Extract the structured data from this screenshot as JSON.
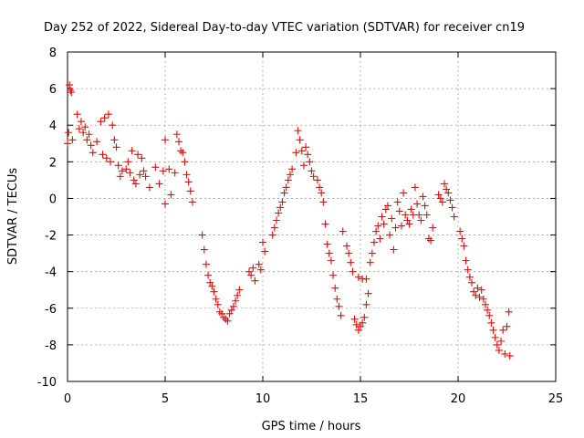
{
  "chart_data": {
    "type": "scatter",
    "title": "Day 252 of 2022, Sidereal Day-to-day VTEC variation (SDTVAR) for receiver cn19",
    "xlabel": "GPS time / hours",
    "ylabel": "SDTVAR / TECUs",
    "xlim": [
      0,
      25
    ],
    "ylim": [
      -10,
      8
    ],
    "xticks": [
      0,
      5,
      10,
      15,
      20,
      25
    ],
    "yticks": [
      -10,
      -8,
      -6,
      -4,
      -2,
      0,
      2,
      4,
      6,
      8
    ],
    "xtick_labels": [
      "0",
      "5",
      "10",
      "15",
      "20",
      "25"
    ],
    "ytick_labels": [
      "-10",
      "-8",
      "-6",
      "-4",
      "-2",
      "0",
      "2",
      "4",
      "6",
      "8"
    ],
    "grid": true,
    "marker": "plus",
    "color": "#ff0000",
    "series": [
      {
        "name": "SDTVAR",
        "points": [
          [
            0.0,
            3.0
          ],
          [
            0.05,
            3.6
          ],
          [
            0.1,
            6.2
          ],
          [
            0.15,
            5.9
          ],
          [
            0.2,
            5.8
          ],
          [
            0.25,
            3.2
          ],
          [
            0.5,
            4.6
          ],
          [
            0.6,
            3.8
          ],
          [
            0.7,
            4.2
          ],
          [
            0.8,
            3.6
          ],
          [
            0.9,
            3.9
          ],
          [
            1.0,
            3.2
          ],
          [
            1.1,
            3.5
          ],
          [
            1.2,
            2.9
          ],
          [
            1.3,
            2.5
          ],
          [
            1.5,
            3.1
          ],
          [
            1.7,
            4.2
          ],
          [
            1.8,
            2.4
          ],
          [
            1.9,
            4.4
          ],
          [
            2.0,
            2.2
          ],
          [
            2.1,
            4.6
          ],
          [
            2.2,
            2.0
          ],
          [
            2.3,
            4.0
          ],
          [
            2.4,
            3.2
          ],
          [
            2.5,
            2.8
          ],
          [
            2.6,
            1.8
          ],
          [
            2.7,
            1.2
          ],
          [
            2.8,
            1.5
          ],
          [
            3.0,
            1.6
          ],
          [
            3.1,
            2.0
          ],
          [
            3.2,
            1.4
          ],
          [
            3.3,
            2.6
          ],
          [
            3.4,
            1.0
          ],
          [
            3.5,
            0.8
          ],
          [
            3.6,
            2.4
          ],
          [
            3.7,
            1.3
          ],
          [
            3.8,
            2.2
          ],
          [
            3.9,
            1.5
          ],
          [
            4.0,
            1.2
          ],
          [
            4.2,
            0.6
          ],
          [
            4.5,
            1.7
          ],
          [
            4.7,
            0.8
          ],
          [
            4.9,
            1.5
          ],
          [
            5.0,
            -0.3
          ],
          [
            5.0,
            3.2
          ],
          [
            5.2,
            1.6
          ],
          [
            5.3,
            0.2
          ],
          [
            5.5,
            1.4
          ],
          [
            5.6,
            3.5
          ],
          [
            5.7,
            3.1
          ],
          [
            5.8,
            2.6
          ],
          [
            5.9,
            2.5
          ],
          [
            6.0,
            2.0
          ],
          [
            6.1,
            1.3
          ],
          [
            6.2,
            0.9
          ],
          [
            6.3,
            0.4
          ],
          [
            6.4,
            -0.2
          ],
          [
            6.9,
            -2.0
          ],
          [
            7.0,
            -2.8
          ],
          [
            7.1,
            -3.6
          ],
          [
            7.2,
            -4.2
          ],
          [
            7.3,
            -4.6
          ],
          [
            7.4,
            -4.8
          ],
          [
            7.5,
            -5.1
          ],
          [
            7.6,
            -5.5
          ],
          [
            7.7,
            -5.8
          ],
          [
            7.8,
            -6.2
          ],
          [
            7.9,
            -6.3
          ],
          [
            8.0,
            -6.5
          ],
          [
            8.1,
            -6.6
          ],
          [
            8.2,
            -6.7
          ],
          [
            8.3,
            -6.3
          ],
          [
            8.4,
            -6.1
          ],
          [
            8.5,
            -5.9
          ],
          [
            8.6,
            -5.6
          ],
          [
            8.7,
            -5.3
          ],
          [
            8.8,
            -5.0
          ],
          [
            9.3,
            -4.0
          ],
          [
            9.4,
            -4.2
          ],
          [
            9.5,
            -3.8
          ],
          [
            9.6,
            -4.5
          ],
          [
            9.8,
            -3.6
          ],
          [
            9.9,
            -3.9
          ],
          [
            10.0,
            -2.4
          ],
          [
            10.1,
            -2.9
          ],
          [
            10.5,
            -2.0
          ],
          [
            10.6,
            -1.6
          ],
          [
            10.7,
            -1.2
          ],
          [
            10.8,
            -0.8
          ],
          [
            10.9,
            -0.5
          ],
          [
            11.0,
            -0.2
          ],
          [
            11.1,
            0.3
          ],
          [
            11.2,
            0.6
          ],
          [
            11.3,
            1.0
          ],
          [
            11.4,
            1.3
          ],
          [
            11.5,
            1.6
          ],
          [
            11.7,
            2.5
          ],
          [
            11.8,
            3.7
          ],
          [
            11.9,
            3.2
          ],
          [
            12.0,
            2.6
          ],
          [
            12.1,
            1.8
          ],
          [
            12.2,
            2.8
          ],
          [
            12.3,
            2.4
          ],
          [
            12.4,
            2.0
          ],
          [
            12.5,
            1.5
          ],
          [
            12.6,
            1.2
          ],
          [
            12.8,
            1.0
          ],
          [
            12.9,
            0.6
          ],
          [
            13.0,
            0.3
          ],
          [
            13.1,
            -0.2
          ],
          [
            13.2,
            -1.4
          ],
          [
            13.3,
            -2.5
          ],
          [
            13.4,
            -3.0
          ],
          [
            13.5,
            -3.4
          ],
          [
            13.6,
            -4.2
          ],
          [
            13.7,
            -4.9
          ],
          [
            13.8,
            -5.5
          ],
          [
            13.9,
            -5.9
          ],
          [
            14.0,
            -6.4
          ],
          [
            14.1,
            -1.8
          ],
          [
            14.3,
            -2.6
          ],
          [
            14.4,
            -3.0
          ],
          [
            14.5,
            -3.5
          ],
          [
            14.6,
            -4.0
          ],
          [
            14.7,
            -6.6
          ],
          [
            14.8,
            -6.9
          ],
          [
            14.9,
            -7.2
          ],
          [
            15.0,
            -7.0
          ],
          [
            15.1,
            -6.8
          ],
          [
            15.2,
            -6.5
          ],
          [
            15.3,
            -5.8
          ],
          [
            15.4,
            -5.2
          ],
          [
            14.9,
            -4.3
          ],
          [
            15.1,
            -4.4
          ],
          [
            15.3,
            -4.4
          ],
          [
            15.5,
            -3.5
          ],
          [
            15.6,
            -3.0
          ],
          [
            15.7,
            -2.4
          ],
          [
            15.8,
            -1.8
          ],
          [
            15.9,
            -1.5
          ],
          [
            16.0,
            -2.2
          ],
          [
            16.1,
            -1.0
          ],
          [
            16.2,
            -1.4
          ],
          [
            16.3,
            -0.6
          ],
          [
            16.4,
            -0.4
          ],
          [
            16.5,
            -2.0
          ],
          [
            16.6,
            -1.1
          ],
          [
            16.7,
            -2.8
          ],
          [
            16.8,
            -1.6
          ],
          [
            16.9,
            -0.2
          ],
          [
            17.0,
            -0.7
          ],
          [
            17.1,
            -1.5
          ],
          [
            17.2,
            0.3
          ],
          [
            17.3,
            -0.9
          ],
          [
            17.4,
            -1.2
          ],
          [
            17.5,
            -1.4
          ],
          [
            17.6,
            -0.6
          ],
          [
            17.7,
            -0.9
          ],
          [
            17.8,
            0.6
          ],
          [
            17.9,
            -0.3
          ],
          [
            18.0,
            -0.9
          ],
          [
            18.1,
            -1.2
          ],
          [
            18.2,
            0.1
          ],
          [
            18.3,
            -0.4
          ],
          [
            18.4,
            -0.9
          ],
          [
            18.5,
            -2.2
          ],
          [
            18.6,
            -2.3
          ],
          [
            18.7,
            -1.6
          ],
          [
            19.0,
            0.2
          ],
          [
            19.1,
            0.0
          ],
          [
            19.2,
            -0.2
          ],
          [
            19.3,
            0.8
          ],
          [
            19.4,
            0.5
          ],
          [
            19.5,
            0.3
          ],
          [
            19.6,
            -0.1
          ],
          [
            19.7,
            -0.5
          ],
          [
            19.8,
            -1.0
          ],
          [
            20.1,
            -1.8
          ],
          [
            20.2,
            -2.2
          ],
          [
            20.3,
            -2.6
          ],
          [
            20.4,
            -3.4
          ],
          [
            20.5,
            -3.9
          ],
          [
            20.6,
            -4.3
          ],
          [
            20.7,
            -4.6
          ],
          [
            20.8,
            -5.1
          ],
          [
            20.9,
            -5.3
          ],
          [
            21.0,
            -4.9
          ],
          [
            21.1,
            -5.4
          ],
          [
            21.2,
            -5.0
          ],
          [
            21.3,
            -5.5
          ],
          [
            21.4,
            -5.8
          ],
          [
            21.5,
            -6.1
          ],
          [
            21.6,
            -6.4
          ],
          [
            21.7,
            -6.8
          ],
          [
            21.8,
            -7.2
          ],
          [
            21.9,
            -7.6
          ],
          [
            22.0,
            -8.0
          ],
          [
            22.1,
            -8.3
          ],
          [
            22.2,
            -7.8
          ],
          [
            22.3,
            -7.2
          ],
          [
            22.4,
            -8.5
          ],
          [
            22.5,
            -7.0
          ],
          [
            22.6,
            -6.2
          ],
          [
            22.65,
            -8.6
          ]
        ]
      }
    ]
  }
}
